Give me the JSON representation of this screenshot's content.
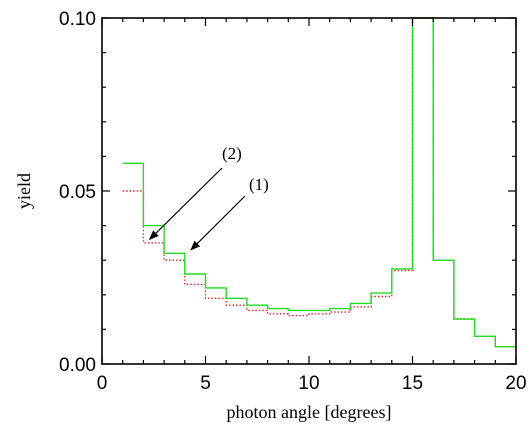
{
  "chart_data": {
    "type": "line",
    "drawstyle": "steps",
    "xlabel": "photon angle [degrees]",
    "ylabel": "yield",
    "xlim": [
      0,
      20
    ],
    "ylim": [
      0,
      0.1
    ],
    "xticks": [
      0,
      5,
      10,
      15,
      20
    ],
    "xtick_labels": [
      "0",
      "5",
      "10",
      "15",
      "20"
    ],
    "yticks": [
      0.0,
      0.05,
      0.1
    ],
    "ytick_labels": [
      "0.00",
      "0.05",
      "0.10"
    ],
    "grid": false,
    "legend": null,
    "bin_edges": [
      1,
      2,
      3,
      4,
      5,
      6,
      7,
      8,
      9,
      10,
      11,
      12,
      13,
      14,
      15,
      16,
      17,
      18,
      19,
      20
    ],
    "series": [
      {
        "color": "#22dd22",
        "linestyle": "solid",
        "values": [
          0.058,
          0.04,
          0.032,
          0.026,
          0.022,
          0.019,
          0.017,
          0.016,
          0.0155,
          0.0155,
          0.016,
          0.0175,
          0.0205,
          0.0275,
          0.1,
          0.03,
          0.013,
          0.008,
          0.005
        ]
      },
      {
        "color": "#ee2222",
        "linestyle": "dotted",
        "values": [
          0.05,
          0.035,
          0.03,
          0.023,
          0.019,
          0.017,
          0.0155,
          0.0145,
          0.014,
          0.0145,
          0.015,
          0.0165,
          0.0195,
          0.027,
          0.1,
          0.03,
          0.013,
          0.008,
          0.005
        ]
      }
    ],
    "annotations": [
      {
        "text": "(2)",
        "points_to": [
          2.3,
          0.036
        ]
      },
      {
        "text": "(1)",
        "points_to": [
          4.3,
          0.033
        ]
      }
    ]
  }
}
